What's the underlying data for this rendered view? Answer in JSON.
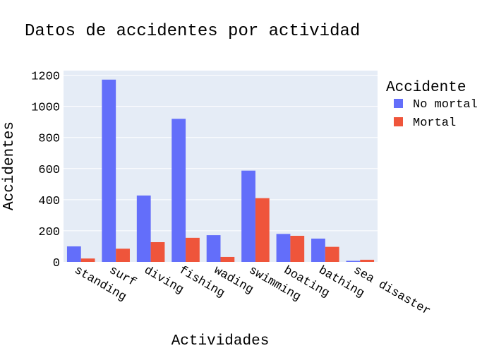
{
  "chart_data": {
    "type": "bar",
    "title": "Datos de accidentes por actividad",
    "xlabel": "Actividades",
    "ylabel": "Accidentes",
    "ylim": [
      0,
      1230
    ],
    "yticks": [
      0,
      200,
      400,
      600,
      800,
      1000,
      1200
    ],
    "categories": [
      "standing",
      "surf",
      "diving",
      "fishing",
      "wading",
      "swimming",
      "boating",
      "bathing",
      "sea disaster"
    ],
    "series": [
      {
        "name": "No mortal",
        "color": "#636efa",
        "values": [
          100,
          1172,
          427,
          920,
          172,
          587,
          180,
          150,
          7
        ]
      },
      {
        "name": "Mortal",
        "color": "#ef553b",
        "values": [
          22,
          85,
          127,
          155,
          32,
          410,
          168,
          97,
          14
        ]
      }
    ],
    "legend": {
      "title": "Accidente",
      "placement": "right"
    },
    "grid": true,
    "plot_bg": "#e5ecf6"
  }
}
